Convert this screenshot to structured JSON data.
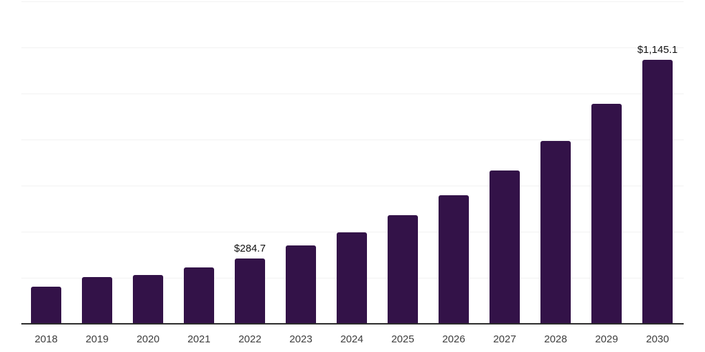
{
  "chart_data": {
    "type": "bar",
    "title": "",
    "xlabel": "",
    "ylabel": "",
    "categories": [
      "2018",
      "2019",
      "2020",
      "2021",
      "2022",
      "2023",
      "2024",
      "2025",
      "2026",
      "2027",
      "2028",
      "2029",
      "2030"
    ],
    "values": [
      162,
      202,
      212,
      245,
      284.7,
      340,
      397,
      471,
      558,
      665,
      794,
      955,
      1145.1
    ],
    "data_labels": [
      "",
      "",
      "",
      "",
      "$284.7",
      "",
      "",
      "",
      "",
      "",
      "",
      "",
      "$1,145.1"
    ],
    "ylim": [
      0,
      1400
    ],
    "gridline_interval": 200,
    "grid": "horizontal",
    "legend": "none",
    "colors": {
      "bar": "#331248",
      "gridline": "#f2f2f2",
      "axis_line": "#2b2b2b",
      "tick_label": "#3d3d3d",
      "data_label": "#111111",
      "background": "#ffffff"
    }
  }
}
